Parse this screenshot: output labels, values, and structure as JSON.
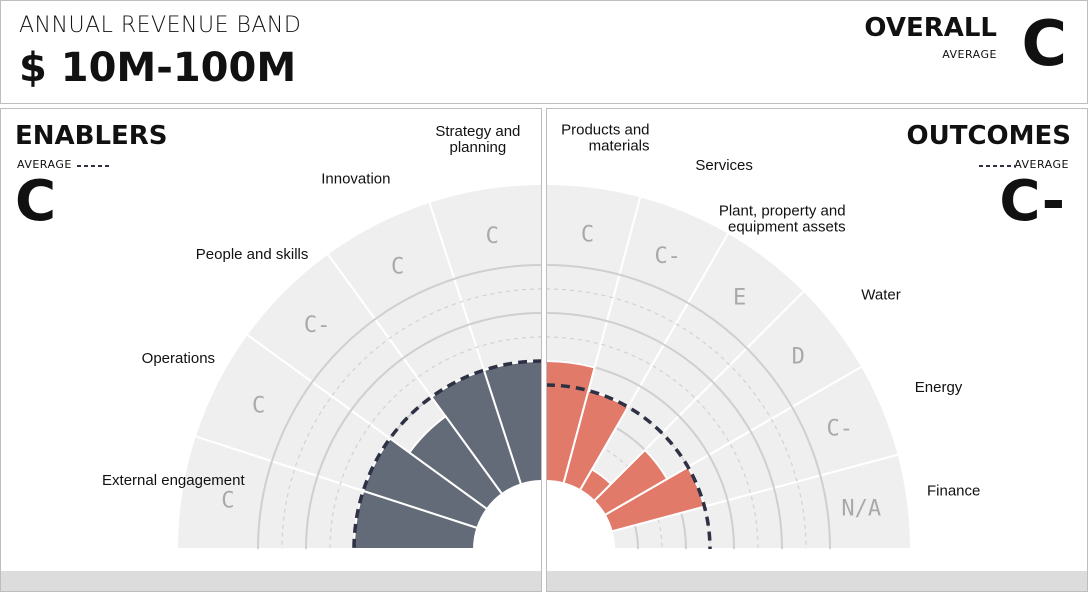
{
  "header": {
    "band_label": "ANNUAL REVENUE BAND",
    "band_value": "$ 10M-100M",
    "overall_label": "OVERALL",
    "overall_sub": "AVERAGE",
    "overall_grade": "C"
  },
  "enablers": {
    "title": "ENABLERS",
    "average_label": "AVERAGE",
    "average_grade": "C"
  },
  "outcomes": {
    "title": "OUTCOMES",
    "average_label": "AVERAGE",
    "average_grade": "C-"
  },
  "chart_data": [
    {
      "type": "radial-bar",
      "title": "ENABLERS",
      "scale": [
        "A",
        "A-",
        "B",
        "B-",
        "C",
        "C-",
        "D",
        "D-",
        "E"
      ],
      "categories": [
        "Strategy and planning",
        "Innovation",
        "People and skills",
        "Operations",
        "External engagement"
      ],
      "grades": [
        "C",
        "C",
        "C-",
        "C",
        "C"
      ],
      "average": "C",
      "color": "#636b78"
    },
    {
      "type": "radial-bar",
      "title": "OUTCOMES",
      "scale": [
        "E",
        "D-",
        "D",
        "C-",
        "C",
        "B-",
        "B",
        "A-",
        "A"
      ],
      "categories": [
        "Products and materials",
        "Services",
        "Plant, property and equipment assets",
        "Water",
        "Energy",
        "Finance"
      ],
      "grades": [
        "C",
        "C-",
        "E",
        "D",
        "C-",
        "N/A"
      ],
      "average": "C-",
      "color": "#e27a6a"
    }
  ]
}
